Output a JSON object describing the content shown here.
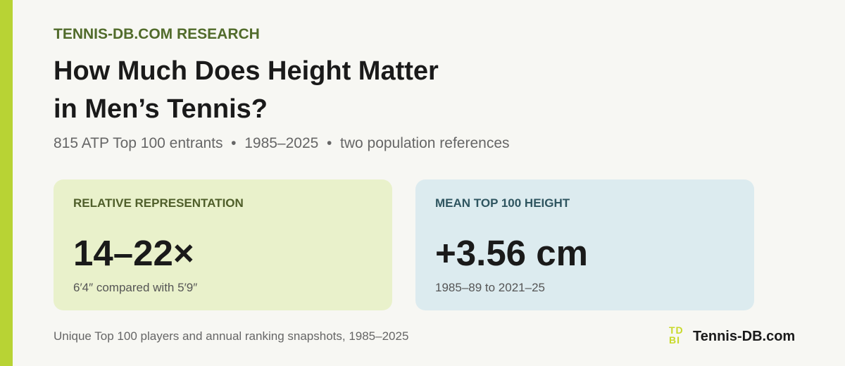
{
  "eyebrow": "TENNIS-DB.COM RESEARCH",
  "title_lines": [
    "How Much Does Height Matter",
    "in Men’s Tennis?"
  ],
  "subtitle": "815 ATP Top 100 entrants  •  1985–2025  •  two population references",
  "cards": [
    {
      "label": "RELATIVE REPRESENTATION",
      "value": "14–22×",
      "note": "6′4″ compared with 5′9″"
    },
    {
      "label": "MEAN TOP 100 HEIGHT",
      "value": "+3.56 cm",
      "note": "1985–89 to 2021–25"
    }
  ],
  "footer": {
    "source": "Unique Top 100 players and annual ranking snapshots, 1985–2025",
    "logo": [
      "TD",
      "BI"
    ],
    "brand": "Tennis-DB.com"
  }
}
